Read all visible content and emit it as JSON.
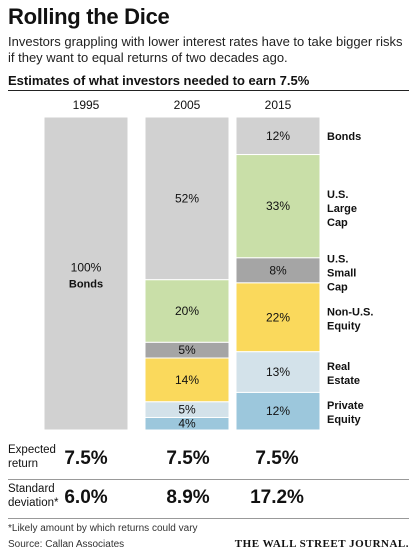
{
  "header": {
    "title": "Rolling the Dice",
    "subtitle": "Investors grappling with lower interest rates have to take bigger risks if they want to equal returns of two decades ago."
  },
  "chart_data": {
    "type": "bar",
    "stacked": true,
    "title": "Estimates of what investors needed to earn 7.5%",
    "categories": [
      "1995",
      "2005",
      "2015"
    ],
    "series": [
      {
        "name": "Bonds",
        "values": [
          100,
          52,
          12
        ],
        "color": "#d1d1d1"
      },
      {
        "name": "U.S. Large Cap",
        "values": [
          0,
          20,
          33
        ],
        "color": "#c9dfa8"
      },
      {
        "name": "U.S. Small Cap",
        "values": [
          0,
          5,
          8
        ],
        "color": "#a5a5a5"
      },
      {
        "name": "Non-U.S. Equity",
        "values": [
          0,
          14,
          22
        ],
        "color": "#fad95c"
      },
      {
        "name": "Real Estate",
        "values": [
          0,
          5,
          13
        ],
        "color": "#d3e2ea"
      },
      {
        "name": "Private Equity",
        "values": [
          0,
          4,
          12
        ],
        "color": "#9cc7dc"
      }
    ],
    "segment_labels": [
      [
        "100%",
        "",
        "",
        "",
        "",
        ""
      ],
      [
        "52%",
        "20%",
        "5%",
        "14%",
        "5%",
        "4%"
      ],
      [
        "12%",
        "33%",
        "8%",
        "22%",
        "13%",
        "12%"
      ]
    ],
    "inline_label": "Bonds",
    "legend_labels": [
      "Bonds",
      "U.S. Large Cap",
      "U.S. Small Cap",
      "Non-U.S. Equity",
      "Real Estate",
      "Private Equity"
    ],
    "legend_placement": "right",
    "ylim": [
      0,
      100
    ]
  },
  "stats": [
    {
      "label": "Expected return",
      "values": [
        "7.5%",
        "7.5%",
        "7.5%"
      ]
    },
    {
      "label": "Standard deviation*",
      "values": [
        "6.0%",
        "8.9%",
        "17.2%"
      ]
    }
  ],
  "footer": {
    "footnote": "*Likely amount by which returns could vary",
    "source": "Source: Callan Associates",
    "publisher": "THE WALL STREET JOURNAL."
  }
}
